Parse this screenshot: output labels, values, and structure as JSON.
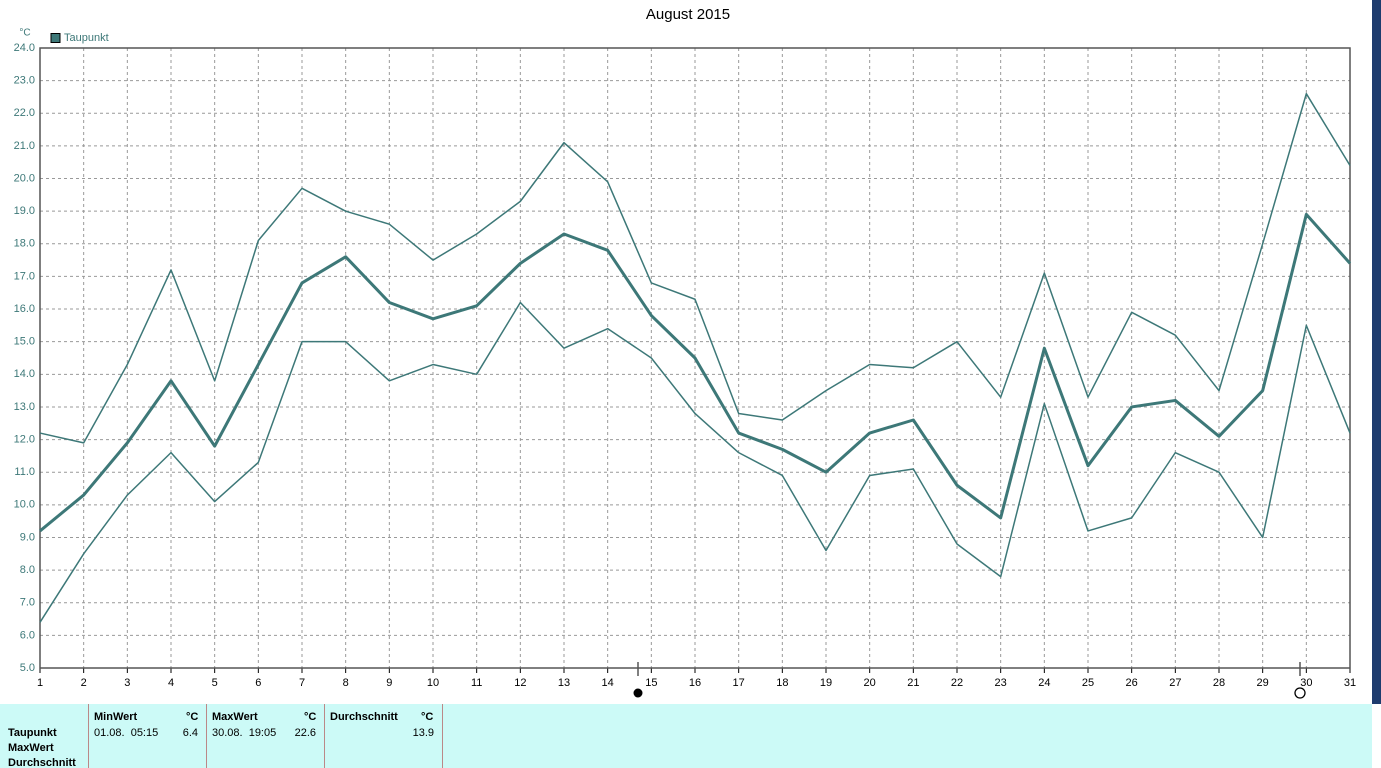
{
  "chart_data": {
    "type": "line",
    "title": "August 2015",
    "y_unit": "°C",
    "categories": [
      "1",
      "2",
      "3",
      "4",
      "5",
      "6",
      "7",
      "8",
      "9",
      "10",
      "11",
      "12",
      "13",
      "14",
      "15",
      "16",
      "17",
      "18",
      "19",
      "20",
      "21",
      "22",
      "23",
      "24",
      "25",
      "26",
      "27",
      "28",
      "29",
      "30",
      "31"
    ],
    "series": [
      {
        "name": "Taupunkt",
        "color": "#3d7878",
        "width": 3,
        "values": [
          9.2,
          10.3,
          11.9,
          13.8,
          11.8,
          14.3,
          16.8,
          17.6,
          16.2,
          15.7,
          16.1,
          17.4,
          18.3,
          17.8,
          15.8,
          14.5,
          12.2,
          11.7,
          11.0,
          12.2,
          12.6,
          10.6,
          9.6,
          14.8,
          11.2,
          13.0,
          13.2,
          12.1,
          13.5,
          18.9,
          17.4
        ]
      },
      {
        "color": "#3d7878",
        "width": 1.5,
        "values": [
          12.2,
          11.9,
          14.3,
          17.2,
          13.8,
          18.1,
          19.7,
          19.0,
          18.6,
          17.5,
          18.3,
          19.3,
          21.1,
          19.9,
          16.8,
          16.3,
          12.8,
          12.6,
          13.5,
          14.3,
          14.2,
          15.0,
          13.3,
          17.1,
          13.3,
          15.9,
          15.2,
          13.5,
          18.0,
          22.6,
          20.4
        ]
      },
      {
        "color": "#3d7878",
        "width": 1.5,
        "values": [
          6.4,
          8.5,
          10.3,
          11.6,
          10.1,
          11.3,
          15.0,
          15.0,
          13.8,
          14.3,
          14.0,
          16.2,
          14.8,
          15.4,
          14.5,
          12.8,
          11.6,
          10.9,
          8.6,
          10.9,
          11.1,
          8.8,
          7.8,
          13.1,
          9.2,
          9.6,
          11.6,
          11.0,
          9.0,
          15.5,
          12.2
        ]
      }
    ],
    "ylim": [
      5,
      24
    ],
    "yticks": [
      {
        "value": 5,
        "label": "5.0"
      },
      {
        "value": 6,
        "label": "6.0"
      },
      {
        "value": 7,
        "label": "7.0"
      },
      {
        "value": 8,
        "label": "8.0"
      },
      {
        "value": 9,
        "label": "9.0"
      },
      {
        "value": 10,
        "label": "10.0"
      },
      {
        "value": 11,
        "label": "11.0"
      },
      {
        "value": 12,
        "label": "12.0"
      },
      {
        "value": 13,
        "label": "13.0"
      },
      {
        "value": 14,
        "label": "14.0"
      },
      {
        "value": 15,
        "label": "15.0"
      },
      {
        "value": 16,
        "label": "16.0"
      },
      {
        "value": 17,
        "label": "17.0"
      },
      {
        "value": 18,
        "label": "18.0"
      },
      {
        "value": 19,
        "label": "19.0"
      },
      {
        "value": 20,
        "label": "20.0"
      },
      {
        "value": 21,
        "label": "21.0"
      },
      {
        "value": 22,
        "label": "22.0"
      },
      {
        "value": 23,
        "label": "23.0"
      },
      {
        "value": 24,
        "label": "24.0"
      }
    ],
    "grid": true
  },
  "summary": {
    "row_labels": [
      "Taupunkt",
      "MaxWert",
      "Durchschnitt"
    ],
    "columns": [
      {
        "header": "MinWert",
        "unit": "°C",
        "date": "01.08.  05:15",
        "value": 6.4
      },
      {
        "header": "MaxWert",
        "unit": "°C",
        "date": "30.08.  19:05",
        "value": 22.6
      },
      {
        "header": "Durchschnitt",
        "unit": "°C",
        "value": 13.9
      }
    ]
  }
}
